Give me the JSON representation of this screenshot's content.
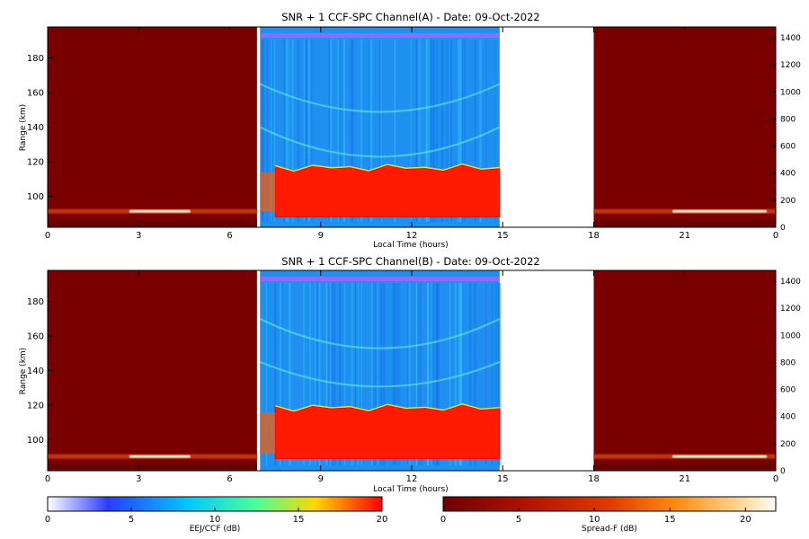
{
  "chart_data": [
    {
      "type": "heatmap",
      "title": "SNR + 1 CCF-SPC Channel(A) - Date: 09-Oct-2022",
      "xlabel": "Local Time (hours)",
      "ylabel": "Range (km)",
      "xlim": [
        0,
        24
      ],
      "ylim": [
        82,
        198
      ],
      "x_ticks": [
        "0",
        "3",
        "6",
        "9",
        "12",
        "15",
        "18",
        "21",
        "0"
      ],
      "y_ticks": [
        "100",
        "120",
        "140",
        "160",
        "180"
      ],
      "right_axis_ticks": [
        "0",
        "200",
        "400",
        "600",
        "800",
        "1000",
        "1200",
        "1400"
      ],
      "segments": [
        {
          "name": "night_early",
          "colormap": "spread_f",
          "x": [
            0,
            6.9
          ]
        },
        {
          "name": "day",
          "colormap": "eej_ccf",
          "x": [
            7.0,
            14.9
          ]
        },
        {
          "name": "gap",
          "colormap": "none",
          "x": [
            14.9,
            18.0
          ]
        },
        {
          "name": "night_late",
          "colormap": "spread_f",
          "x": [
            18.0,
            24
          ]
        }
      ],
      "strong_layer": {
        "x": [
          7.5,
          14.9
        ],
        "y": [
          89,
          118
        ],
        "value_db": 20
      },
      "echo_arcs_km": [
        [
          148,
          165
        ],
        [
          122,
          140
        ]
      ],
      "night_echo_km": 91
    },
    {
      "type": "heatmap",
      "title": "SNR + 1 CCF-SPC Channel(B) - Date: 09-Oct-2022",
      "xlabel": "Local Time (hours)",
      "ylabel": "Range (km)",
      "xlim": [
        0,
        24
      ],
      "ylim": [
        82,
        198
      ],
      "x_ticks": [
        "0",
        "3",
        "6",
        "9",
        "12",
        "15",
        "18",
        "21",
        "0"
      ],
      "y_ticks": [
        "100",
        "120",
        "140",
        "160",
        "180"
      ],
      "right_axis_ticks": [
        "0",
        "200",
        "400",
        "600",
        "800",
        "1000",
        "1200",
        "1400"
      ],
      "segments": [
        {
          "name": "night_early",
          "colormap": "spread_f",
          "x": [
            0,
            6.9
          ]
        },
        {
          "name": "day",
          "colormap": "eej_ccf",
          "x": [
            7.0,
            14.9
          ]
        },
        {
          "name": "gap",
          "colormap": "none",
          "x": [
            14.9,
            18.0
          ]
        },
        {
          "name": "night_late",
          "colormap": "spread_f",
          "x": [
            18.0,
            24
          ]
        }
      ],
      "strong_layer": {
        "x": [
          7.5,
          14.9
        ],
        "y": [
          90,
          120
        ],
        "value_db": 20
      },
      "echo_arcs_km": [
        [
          152,
          170
        ],
        [
          130,
          145
        ]
      ],
      "night_echo_km": 90
    }
  ],
  "colorbars": [
    {
      "label": "EEJ/CCF (dB)",
      "range": [
        0,
        20
      ],
      "ticks": [
        "0",
        "5",
        "10",
        "15",
        "20"
      ],
      "colors": [
        "#ffffff",
        "#2a3cff",
        "#00c8ff",
        "#48ff9a",
        "#ffd600",
        "#ff0000"
      ]
    },
    {
      "label": "Spread-F (dB)",
      "range": [
        0,
        22
      ],
      "ticks": [
        "0",
        "5",
        "10",
        "15",
        "20"
      ],
      "colors": [
        "#6e0000",
        "#b21200",
        "#e03a00",
        "#ff8b10",
        "#ffd28a",
        "#fffcf5"
      ]
    }
  ]
}
